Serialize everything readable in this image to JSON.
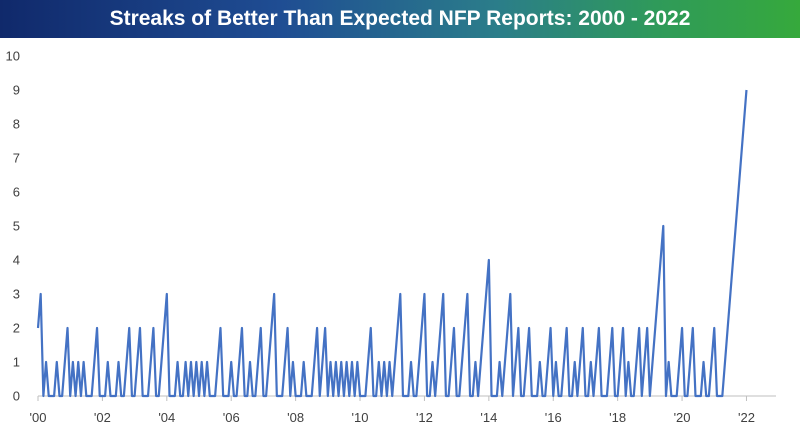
{
  "chart_data": {
    "type": "line",
    "title": "Streaks of Better Than Expected NFP Reports: 2000 - 2022",
    "xlabel": "",
    "ylabel": "",
    "ylim": [
      0,
      10
    ],
    "xlim": [
      2000,
      2022.917
    ],
    "yticks": [
      "0",
      "1",
      "2",
      "3",
      "4",
      "5",
      "6",
      "7",
      "8",
      "9",
      "10"
    ],
    "xticks": [
      {
        "x": 2000,
        "label": "'00"
      },
      {
        "x": 2002,
        "label": "'02"
      },
      {
        "x": 2004,
        "label": "'04"
      },
      {
        "x": 2006,
        "label": "'06"
      },
      {
        "x": 2008,
        "label": "'08"
      },
      {
        "x": 2010,
        "label": "'10"
      },
      {
        "x": 2012,
        "label": "'12"
      },
      {
        "x": 2014,
        "label": "'14"
      },
      {
        "x": 2016,
        "label": "'16"
      },
      {
        "x": 2018,
        "label": "'18"
      },
      {
        "x": 2020,
        "label": "'20"
      },
      {
        "x": 2022,
        "label": "'22"
      }
    ],
    "grid": false,
    "legend": "none",
    "color": "#4472c4",
    "series": [
      {
        "start": "2000-01",
        "values": [
          2,
          3,
          0,
          1,
          0,
          0,
          0,
          1,
          0,
          0,
          1,
          2,
          0,
          1,
          0,
          1,
          0,
          1,
          0,
          0,
          0,
          1,
          2,
          0,
          0,
          0,
          1,
          0,
          0,
          0,
          1,
          0,
          0,
          1,
          2,
          0,
          0,
          1,
          2,
          0,
          0,
          0,
          1,
          2,
          0,
          0,
          1,
          2,
          3,
          0,
          0,
          0,
          1,
          0,
          0,
          1,
          0,
          1,
          0,
          1,
          0,
          1,
          0,
          1,
          0,
          0,
          0,
          1,
          2,
          0,
          0,
          0,
          1,
          0,
          0,
          1,
          2,
          0,
          0,
          1,
          0,
          0,
          1,
          2,
          0,
          0,
          1,
          2,
          3,
          0,
          0,
          0,
          1,
          2,
          0,
          1,
          0,
          0,
          0,
          1,
          0,
          0,
          0,
          1,
          2,
          0,
          1,
          2,
          0,
          1,
          0,
          1,
          0,
          1,
          0,
          1,
          0,
          1,
          0,
          1,
          0,
          0,
          0,
          1,
          2,
          0,
          0,
          1,
          0,
          1,
          0,
          1,
          0,
          1,
          2,
          3,
          0,
          0,
          0,
          1,
          0,
          0,
          1,
          2,
          3,
          0,
          0,
          1,
          0,
          1,
          2,
          3,
          0,
          0,
          1,
          2,
          0,
          0,
          1,
          2,
          3,
          0,
          0,
          1,
          0,
          1,
          2,
          3,
          4,
          0,
          0,
          0,
          1,
          0,
          1,
          2,
          3,
          0,
          1,
          2,
          0,
          0,
          1,
          2,
          0,
          0,
          0,
          1,
          0,
          0,
          1,
          2,
          0,
          1,
          0,
          0,
          1,
          2,
          0,
          0,
          1,
          0,
          1,
          2,
          0,
          0,
          1,
          0,
          1,
          2,
          0,
          0,
          0,
          1,
          2,
          0,
          0,
          1,
          2,
          0,
          1,
          0,
          0,
          1,
          2,
          0,
          1,
          2,
          0,
          1,
          2,
          3,
          4,
          5,
          0,
          1,
          0,
          0,
          0,
          1,
          2,
          0,
          0,
          1,
          2,
          0,
          0,
          0,
          1,
          0,
          0,
          1,
          2,
          0,
          0,
          0,
          1,
          2,
          3,
          4,
          5,
          6,
          7,
          8,
          9
        ]
      }
    ]
  }
}
